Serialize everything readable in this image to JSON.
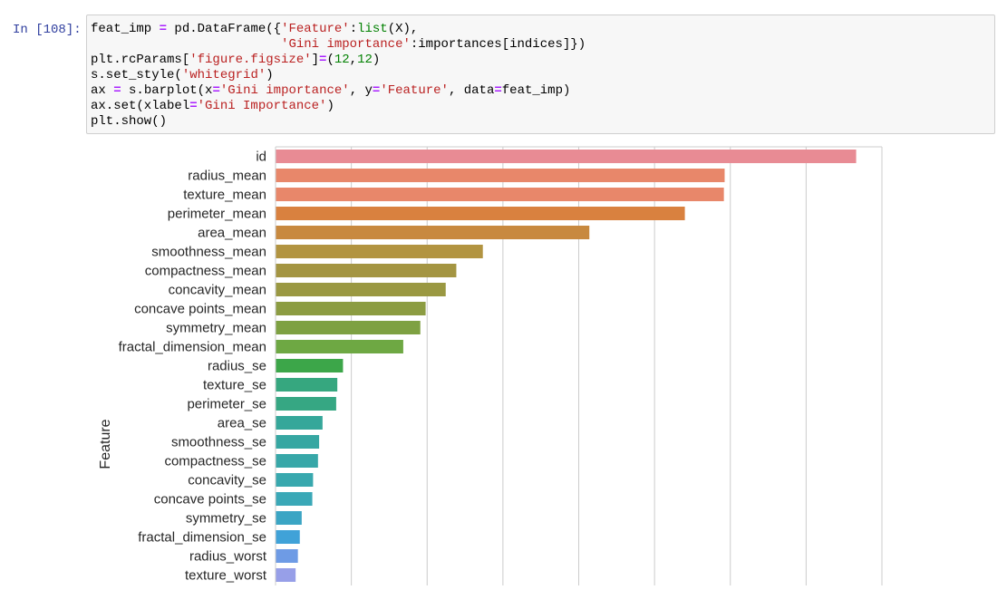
{
  "cell": {
    "prompt": "In [108]:",
    "code_lines": [
      [
        {
          "t": "feat_imp ",
          "c": "plain"
        },
        {
          "t": "=",
          "c": "op"
        },
        {
          "t": " pd.DataFrame({",
          "c": "plain"
        },
        {
          "t": "'Feature'",
          "c": "str"
        },
        {
          "t": ":",
          "c": "plain"
        },
        {
          "t": "list",
          "c": "builtin"
        },
        {
          "t": "(X),",
          "c": "plain"
        }
      ],
      [
        {
          "t": "                         ",
          "c": "plain"
        },
        {
          "t": "'Gini importance'",
          "c": "str"
        },
        {
          "t": ":importances[indices]})",
          "c": "plain"
        }
      ],
      [
        {
          "t": "plt.rcParams[",
          "c": "plain"
        },
        {
          "t": "'figure.figsize'",
          "c": "str"
        },
        {
          "t": "]",
          "c": "plain"
        },
        {
          "t": "=",
          "c": "op"
        },
        {
          "t": "(",
          "c": "plain"
        },
        {
          "t": "12",
          "c": "num"
        },
        {
          "t": ",",
          "c": "plain"
        },
        {
          "t": "12",
          "c": "num"
        },
        {
          "t": ")",
          "c": "plain"
        }
      ],
      [
        {
          "t": "s.set_style(",
          "c": "plain"
        },
        {
          "t": "'whitegrid'",
          "c": "str"
        },
        {
          "t": ")",
          "c": "plain"
        }
      ],
      [
        {
          "t": "ax ",
          "c": "plain"
        },
        {
          "t": "=",
          "c": "op"
        },
        {
          "t": " s.barplot(x",
          "c": "plain"
        },
        {
          "t": "=",
          "c": "op"
        },
        {
          "t": "'Gini importance'",
          "c": "str"
        },
        {
          "t": ", y",
          "c": "plain"
        },
        {
          "t": "=",
          "c": "op"
        },
        {
          "t": "'Feature'",
          "c": "str"
        },
        {
          "t": ", data",
          "c": "plain"
        },
        {
          "t": "=",
          "c": "op"
        },
        {
          "t": "feat_imp)",
          "c": "plain"
        }
      ],
      [
        {
          "t": "ax.set(xlabel",
          "c": "plain"
        },
        {
          "t": "=",
          "c": "op"
        },
        {
          "t": "'Gini Importance'",
          "c": "str"
        },
        {
          "t": ")",
          "c": "plain"
        }
      ],
      [
        {
          "t": "plt.show()",
          "c": "plain"
        }
      ]
    ]
  },
  "chart_data": {
    "type": "bar",
    "orientation": "horizontal",
    "ylabel": "Feature",
    "categories": [
      "id",
      "radius_mean",
      "texture_mean",
      "perimeter_mean",
      "area_mean",
      "smoothness_mean",
      "compactness_mean",
      "concavity_mean",
      "concave points_mean",
      "symmetry_mean",
      "fractal_dimension_mean",
      "radius_se",
      "texture_se",
      "perimeter_se",
      "area_se",
      "smoothness_se",
      "compactness_se",
      "concavity_se",
      "concave points_se",
      "symmetry_se",
      "fractal_dimension_se",
      "radius_worst",
      "texture_worst"
    ],
    "values": [
      0.1532,
      0.1185,
      0.1183,
      0.108,
      0.0828,
      0.0547,
      0.0477,
      0.0449,
      0.0396,
      0.0382,
      0.0337,
      0.0178,
      0.0163,
      0.016,
      0.0124,
      0.0115,
      0.0112,
      0.0099,
      0.0097,
      0.0069,
      0.0064,
      0.0059,
      0.0053
    ],
    "colors": [
      "#e88b94",
      "#e8876a",
      "#e8876a",
      "#d9813f",
      "#c8893f",
      "#b29441",
      "#a49542",
      "#9a9842",
      "#8c9c42",
      "#7ea142",
      "#6ea843",
      "#3ca649",
      "#36a77f",
      "#36a783",
      "#35a79a",
      "#36a7a2",
      "#37a7a8",
      "#38a8ae",
      "#3aa8b7",
      "#3ba5c4",
      "#40a2d8",
      "#6e9be5",
      "#979fe8"
    ],
    "xlim": [
      0,
      0.16
    ],
    "xgrid_step": 0.02,
    "grid": true,
    "visible_range_note": ""
  }
}
